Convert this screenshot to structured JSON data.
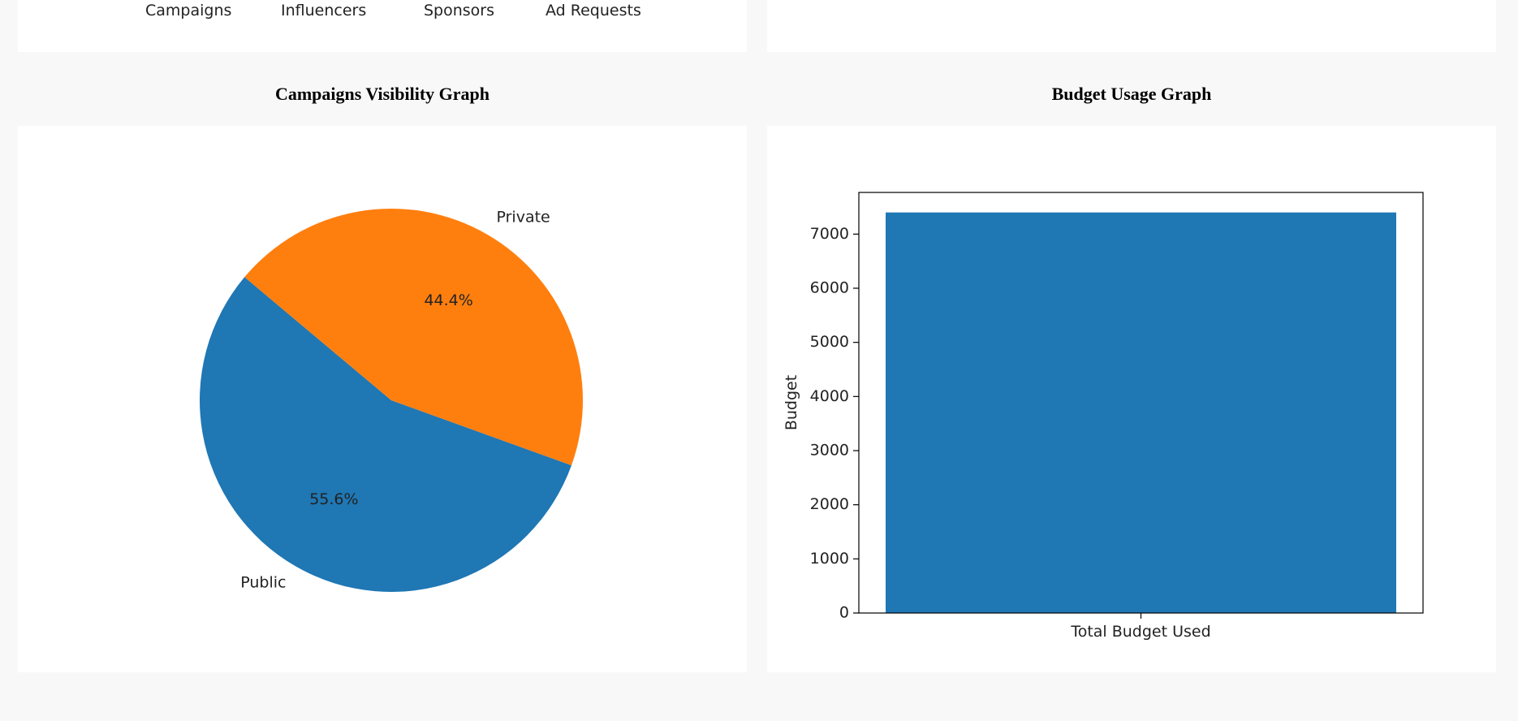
{
  "nav": {
    "items": [
      "Campaigns",
      "Influencers",
      "Sponsors",
      "Ad Requests"
    ]
  },
  "titles": {
    "pie": "Campaigns Visibility Graph",
    "bar": "Budget Usage Graph"
  },
  "colors": {
    "blue": "#1f77b4",
    "orange": "#ff7f0e"
  },
  "chart_data": [
    {
      "type": "pie",
      "title": "Campaigns Visibility Graph",
      "labels": [
        "Public",
        "Private"
      ],
      "values": [
        55.6,
        44.4
      ],
      "autopct": [
        "55.6%",
        "44.4%"
      ],
      "colors": [
        "#1f77b4",
        "#ff7f0e"
      ],
      "startangle": 140
    },
    {
      "type": "bar",
      "title": "Budget Usage Graph",
      "categories": [
        "Total Budget Used"
      ],
      "values": [
        7400
      ],
      "xlabel": "",
      "ylabel": "Budget",
      "ylim": [
        0,
        7770
      ],
      "yticks": [
        0,
        1000,
        2000,
        3000,
        4000,
        5000,
        6000,
        7000
      ],
      "color": "#1f77b4"
    }
  ]
}
